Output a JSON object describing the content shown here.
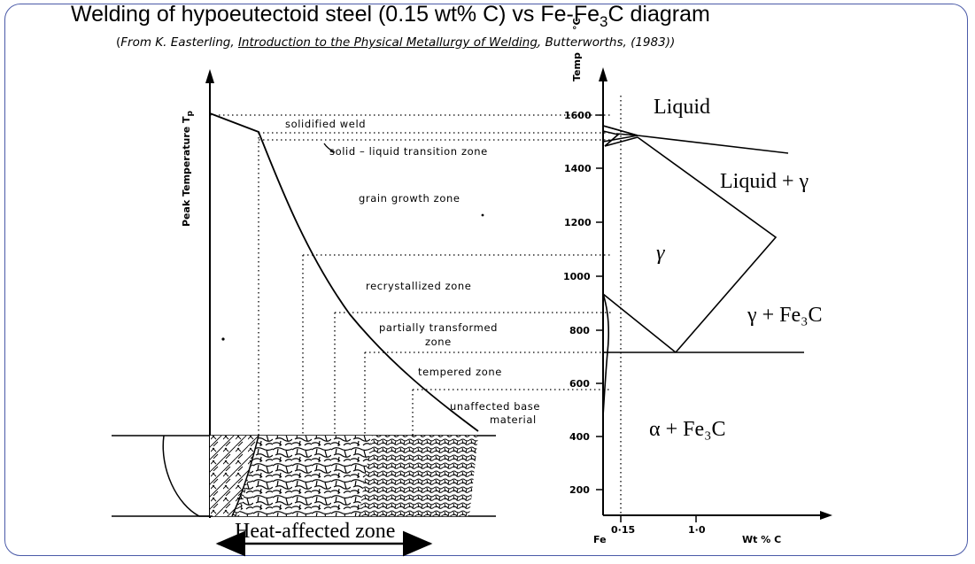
{
  "title": {
    "main": "Welding of hypoeutectoid steel (0.15 wt% C) vs Fe-Fe",
    "sub": "3",
    "tail": "C diagram"
  },
  "citation": {
    "open": "(",
    "from": "From K. Easterling, ",
    "book": "Introduction to the Physical Metallurgy of Welding",
    "rest": ", Butterworths, (1983))"
  },
  "left_diagram": {
    "y_axis_label": "Peak Temperature  T",
    "y_axis_sub": "p",
    "zones": [
      "solidified weld",
      "solid – liquid transition zone",
      "grain growth zone",
      "recrystallized zone",
      "partially transformed",
      "zone",
      "tempered zone",
      "unaffected base",
      "material"
    ],
    "haz_label": "Heat-affected zone"
  },
  "right_diagram": {
    "y_axis_label": "Temp",
    "y_axis_unit": "°C",
    "y_ticks": [
      "1600",
      "1400",
      "1200",
      "1000",
      "800",
      "600",
      "400",
      "200"
    ],
    "x_ticks": [
      "Fe",
      "0·15",
      "1·0"
    ],
    "x_axis_label": "Wt % C",
    "phases": {
      "liquid": "Liquid",
      "liquid_gamma": "Liquid + γ",
      "gamma": "γ",
      "gamma_fe3c": "γ + Fe₃C",
      "alpha_fe3c": "α + Fe₃C"
    }
  }
}
